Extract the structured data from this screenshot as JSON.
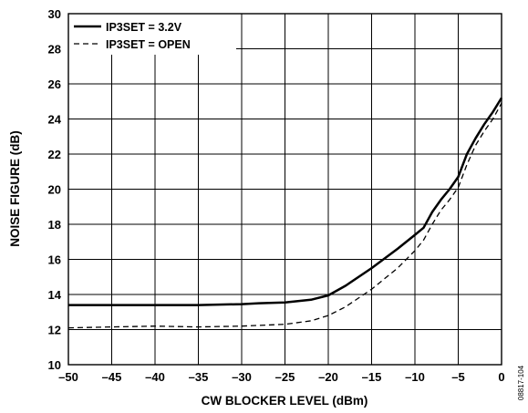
{
  "chart_data": {
    "type": "line",
    "xlabel": "CW BLOCKER LEVEL (dBm)",
    "ylabel": "NOISE FIGURE (dB)",
    "xlim": [
      -50,
      0
    ],
    "ylim": [
      10,
      30
    ],
    "xticks": [
      -50,
      -45,
      -40,
      -35,
      -30,
      -25,
      -20,
      -15,
      -10,
      -5,
      0
    ],
    "yticks": [
      10,
      12,
      14,
      16,
      18,
      20,
      22,
      24,
      26,
      28,
      30
    ],
    "grid": true,
    "legend_position": "top-left",
    "series": [
      {
        "name": "IP3SET = 3.2V",
        "style": "solid",
        "color": "#000000",
        "x": [
          -50,
          -45,
          -40,
          -35,
          -30,
          -28,
          -25,
          -22,
          -20,
          -18,
          -15,
          -12,
          -10,
          -9,
          -8,
          -7,
          -6,
          -5,
          -4,
          -3,
          -2,
          -1,
          0
        ],
        "y": [
          13.4,
          13.4,
          13.4,
          13.4,
          13.45,
          13.5,
          13.55,
          13.7,
          13.95,
          14.5,
          15.5,
          16.6,
          17.4,
          17.8,
          18.7,
          19.4,
          20.0,
          20.7,
          22.0,
          22.9,
          23.7,
          24.4,
          25.2
        ]
      },
      {
        "name": "IP3SET = OPEN",
        "style": "dashed",
        "color": "#000000",
        "x": [
          -50,
          -45,
          -40,
          -35,
          -30,
          -25,
          -22,
          -20,
          -18,
          -15,
          -12,
          -10,
          -9,
          -8,
          -7,
          -6,
          -5,
          -4,
          -3,
          -2,
          -1,
          0
        ],
        "y": [
          12.1,
          12.15,
          12.2,
          12.15,
          12.2,
          12.3,
          12.5,
          12.8,
          13.3,
          14.3,
          15.5,
          16.5,
          17.1,
          18.0,
          18.8,
          19.4,
          20.1,
          21.4,
          22.5,
          23.3,
          24.0,
          24.9
        ]
      }
    ]
  },
  "figure_id": "08817-104"
}
